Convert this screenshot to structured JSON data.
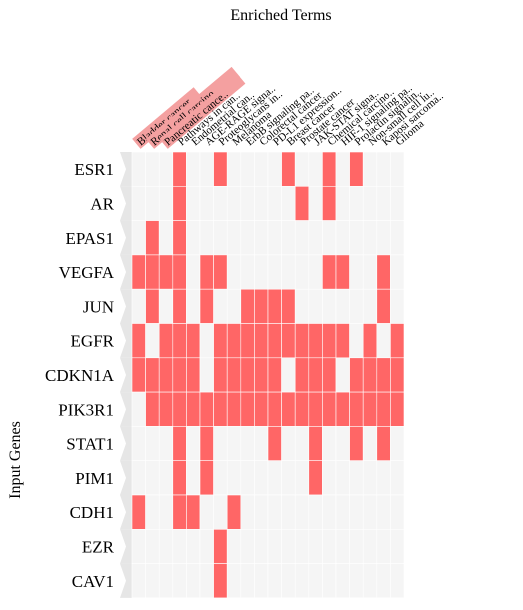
{
  "chart_data": {
    "type": "heatmap",
    "title": "Enriched Terms",
    "xlabel": "",
    "ylabel": "Input Genes",
    "colors": {
      "hit": "#ff6666",
      "empty": "#f5f5f5",
      "cell_border": "#ffffff",
      "row_arrow": "#e6e6e6",
      "header_highlight": "#f4a0a0",
      "text": "#000000"
    },
    "highlighted_terms": [
      0,
      1,
      2
    ],
    "x": [
      "Bladder cancer",
      "Renal cell carcino..",
      "Pancreatic cance..",
      "Pathways in can..",
      "Endometrial can..",
      "AGE-RAGE signa..",
      "Proteoglycans in..",
      "Melanoma",
      "ErbB signaling pa..",
      "Colorectal cancer",
      "PD-L1 expression..",
      "Breast cancer",
      "Prostate cancer",
      "JAK-STAT signa..",
      "Chemical carcino..",
      "HIF-1 signaling pa..",
      "Prolactin signalin..",
      "Non-small cell lu..",
      "Kaposi sarcoma..",
      "Glioma"
    ],
    "y": [
      "ESR1",
      "AR",
      "EPAS1",
      "VEGFA",
      "JUN",
      "EGFR",
      "CDKN1A",
      "PIK3R1",
      "STAT1",
      "PIM1",
      "CDH1",
      "EZR",
      "CAV1"
    ],
    "z": [
      [
        0,
        0,
        0,
        1,
        0,
        0,
        1,
        0,
        0,
        0,
        0,
        1,
        0,
        0,
        1,
        0,
        1,
        0,
        0,
        0
      ],
      [
        0,
        0,
        0,
        1,
        0,
        0,
        0,
        0,
        0,
        0,
        0,
        0,
        1,
        0,
        1,
        0,
        0,
        0,
        0,
        0
      ],
      [
        0,
        1,
        0,
        1,
        0,
        0,
        0,
        0,
        0,
        0,
        0,
        0,
        0,
        0,
        0,
        0,
        0,
        0,
        0,
        0
      ],
      [
        1,
        1,
        1,
        1,
        0,
        1,
        1,
        0,
        0,
        0,
        0,
        0,
        0,
        0,
        1,
        1,
        0,
        0,
        1,
        0
      ],
      [
        0,
        1,
        0,
        1,
        0,
        1,
        0,
        0,
        1,
        1,
        1,
        1,
        0,
        0,
        0,
        0,
        0,
        0,
        1,
        0
      ],
      [
        1,
        0,
        1,
        1,
        1,
        0,
        1,
        1,
        1,
        1,
        1,
        1,
        1,
        1,
        1,
        1,
        0,
        1,
        0,
        1
      ],
      [
        1,
        1,
        1,
        1,
        1,
        0,
        1,
        1,
        1,
        1,
        1,
        0,
        1,
        1,
        1,
        0,
        1,
        1,
        1,
        1
      ],
      [
        0,
        1,
        1,
        1,
        1,
        1,
        1,
        1,
        1,
        1,
        1,
        1,
        1,
        1,
        1,
        1,
        1,
        1,
        1,
        1
      ],
      [
        0,
        0,
        0,
        1,
        0,
        1,
        0,
        0,
        0,
        0,
        1,
        0,
        0,
        1,
        0,
        0,
        1,
        0,
        1,
        0
      ],
      [
        0,
        0,
        0,
        1,
        0,
        1,
        0,
        0,
        0,
        0,
        0,
        0,
        0,
        1,
        0,
        0,
        0,
        0,
        0,
        0
      ],
      [
        1,
        0,
        0,
        1,
        1,
        0,
        0,
        1,
        0,
        0,
        0,
        0,
        0,
        0,
        0,
        0,
        0,
        0,
        0,
        0
      ],
      [
        0,
        0,
        0,
        0,
        0,
        0,
        1,
        0,
        0,
        0,
        0,
        0,
        0,
        0,
        0,
        0,
        0,
        0,
        0,
        0
      ],
      [
        0,
        0,
        0,
        0,
        0,
        0,
        1,
        0,
        0,
        0,
        0,
        0,
        0,
        0,
        0,
        0,
        0,
        0,
        0,
        0
      ]
    ]
  }
}
